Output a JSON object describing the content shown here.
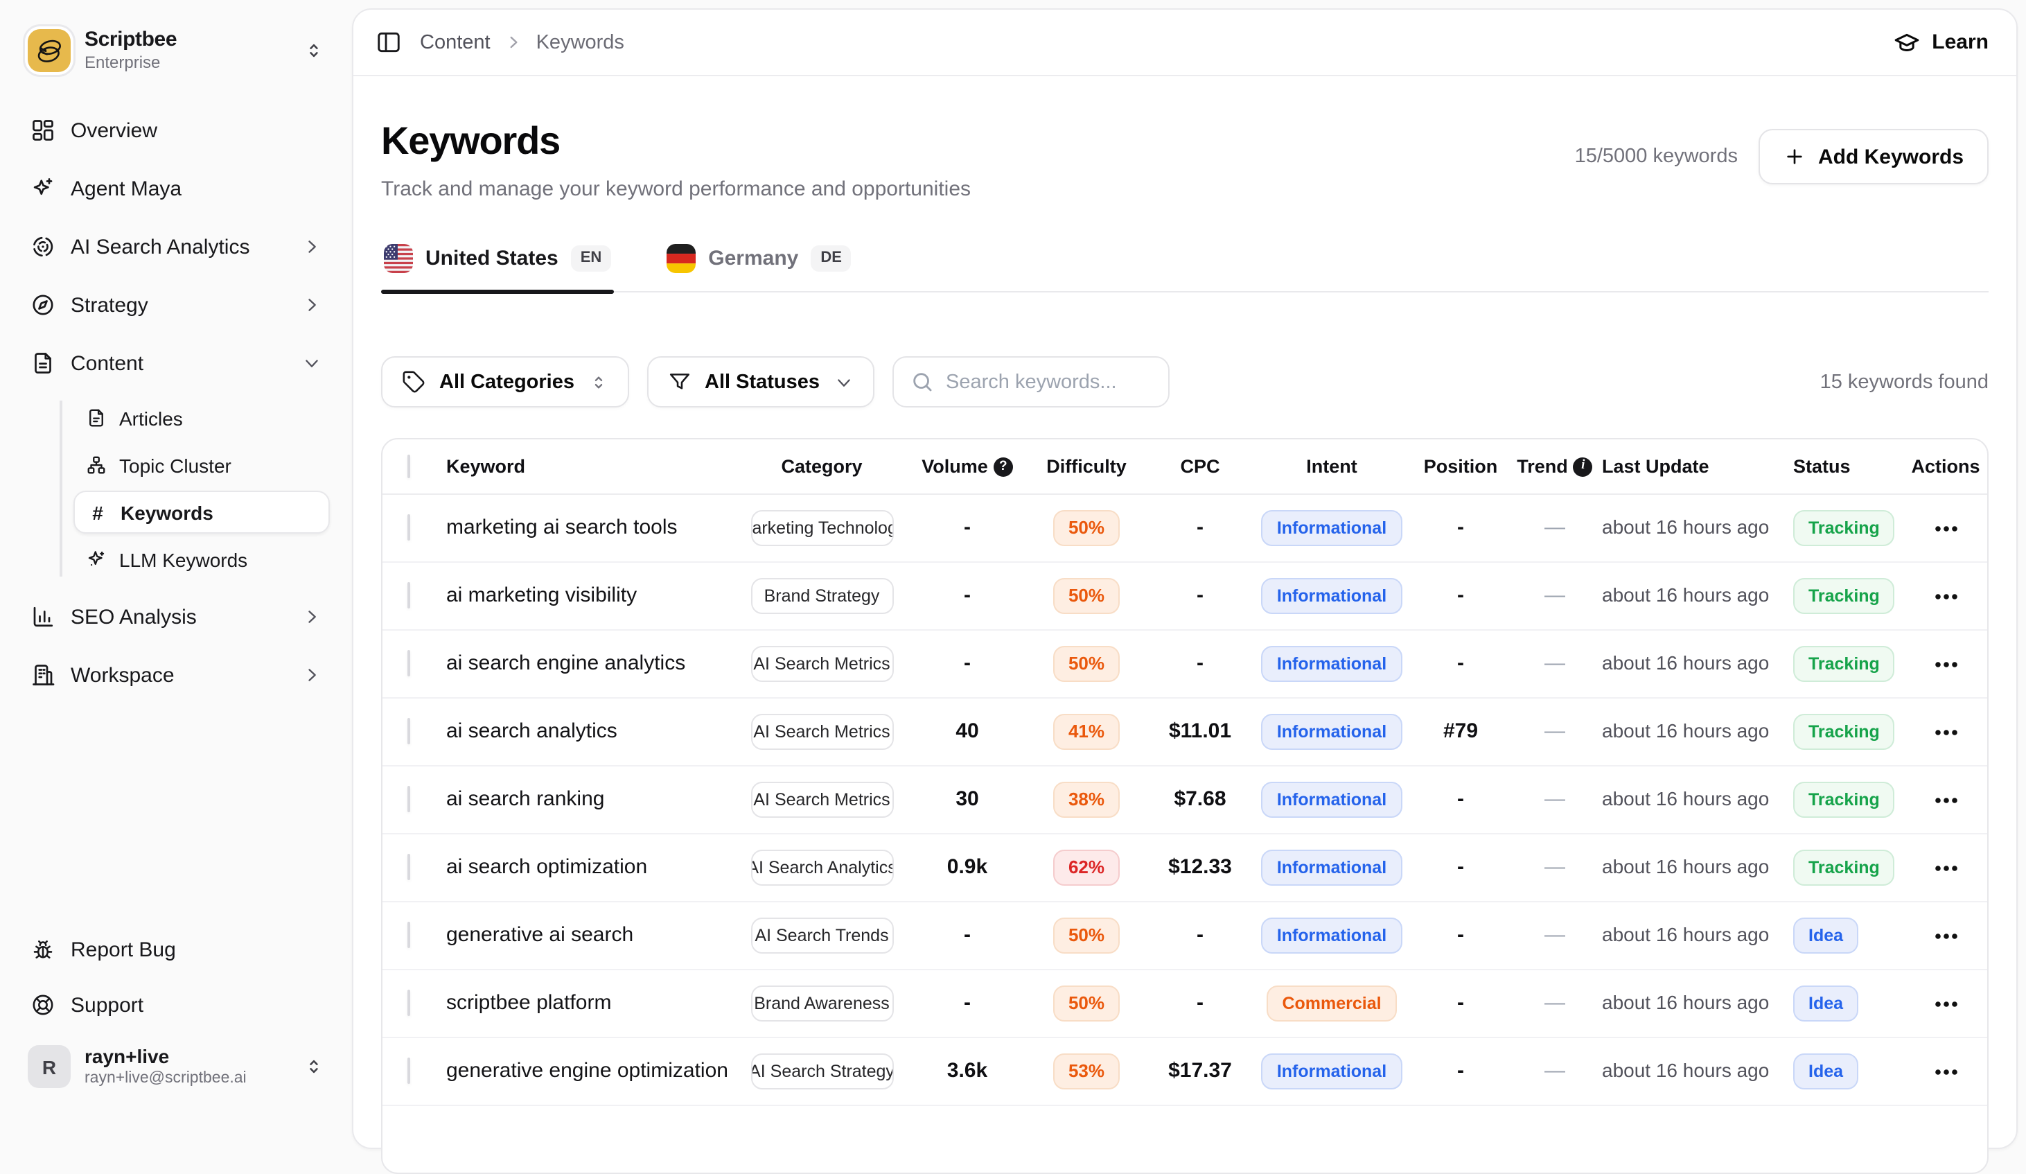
{
  "app": {
    "name": "Scriptbee",
    "plan": "Enterprise"
  },
  "sidebar": {
    "items": [
      {
        "label": "Overview",
        "icon": "grid"
      },
      {
        "label": "Agent Maya",
        "icon": "sparkles"
      },
      {
        "label": "AI Search Analytics",
        "icon": "radar",
        "chevron": "right"
      },
      {
        "label": "Strategy",
        "icon": "compass",
        "chevron": "right"
      },
      {
        "label": "Content",
        "icon": "file-text",
        "chevron": "down"
      }
    ],
    "content_children": [
      {
        "label": "Articles",
        "icon": "file"
      },
      {
        "label": "Topic Cluster",
        "icon": "cluster"
      },
      {
        "label": "Keywords",
        "icon": "hash",
        "active": true
      },
      {
        "label": "LLM Keywords",
        "icon": "sparkle"
      }
    ],
    "items_lower": [
      {
        "label": "SEO Analysis",
        "icon": "bar-chart",
        "chevron": "right"
      },
      {
        "label": "Workspace",
        "icon": "building",
        "chevron": "right"
      }
    ],
    "footer": [
      {
        "label": "Report Bug",
        "icon": "bug"
      },
      {
        "label": "Support",
        "icon": "life-buoy"
      }
    ],
    "user": {
      "initial": "R",
      "name": "rayn+live",
      "email": "rayn+live@scriptbee.ai"
    }
  },
  "topbar": {
    "breadcrumb": [
      "Content",
      "Keywords"
    ],
    "learn": "Learn"
  },
  "page": {
    "title": "Keywords",
    "subtitle": "Track and manage your keyword performance and opportunities",
    "quota": "15/5000 keywords",
    "add_button": "Add Keywords"
  },
  "tabs": [
    {
      "label": "United States",
      "lang": "EN",
      "flag": "us",
      "active": true
    },
    {
      "label": "Germany",
      "lang": "DE",
      "flag": "de",
      "active": false
    }
  ],
  "filters": {
    "category": "All Categories",
    "status": "All Statuses",
    "search_placeholder": "Search keywords...",
    "results": "15 keywords found"
  },
  "colors": {
    "brand_yellow": "#e7b94c",
    "difficulty_orange": "#ea580c",
    "difficulty_red": "#dc2626",
    "intent_blue": "#2563eb",
    "status_green": "#16a34a"
  },
  "table": {
    "columns": [
      "Keyword",
      "Category",
      "Volume",
      "Difficulty",
      "CPC",
      "Intent",
      "Position",
      "Trend",
      "Last Update",
      "Status",
      "Actions"
    ],
    "rows": [
      {
        "keyword": "marketing ai search tools",
        "category": "Marketing Technology",
        "volume": "-",
        "difficulty": "50%",
        "difficulty_tone": "orange",
        "cpc": "-",
        "intent": "Informational",
        "intent_tone": "blue",
        "position": "-",
        "trend": "—",
        "last_update": "about 16 hours ago",
        "status": "Tracking",
        "status_tone": "green"
      },
      {
        "keyword": "ai marketing visibility",
        "category": "Brand Strategy",
        "volume": "-",
        "difficulty": "50%",
        "difficulty_tone": "orange",
        "cpc": "-",
        "intent": "Informational",
        "intent_tone": "blue",
        "position": "-",
        "trend": "—",
        "last_update": "about 16 hours ago",
        "status": "Tracking",
        "status_tone": "green"
      },
      {
        "keyword": "ai search engine analytics",
        "category": "AI Search Metrics",
        "volume": "-",
        "difficulty": "50%",
        "difficulty_tone": "orange",
        "cpc": "-",
        "intent": "Informational",
        "intent_tone": "blue",
        "position": "-",
        "trend": "—",
        "last_update": "about 16 hours ago",
        "status": "Tracking",
        "status_tone": "green"
      },
      {
        "keyword": "ai search analytics",
        "category": "AI Search Metrics",
        "volume": "40",
        "difficulty": "41%",
        "difficulty_tone": "orange",
        "cpc": "$11.01",
        "intent": "Informational",
        "intent_tone": "blue",
        "position": "#79",
        "trend": "—",
        "last_update": "about 16 hours ago",
        "status": "Tracking",
        "status_tone": "green"
      },
      {
        "keyword": "ai search ranking",
        "category": "AI Search Metrics",
        "volume": "30",
        "difficulty": "38%",
        "difficulty_tone": "orange",
        "cpc": "$7.68",
        "intent": "Informational",
        "intent_tone": "blue",
        "position": "-",
        "trend": "—",
        "last_update": "about 16 hours ago",
        "status": "Tracking",
        "status_tone": "green"
      },
      {
        "keyword": "ai search optimization",
        "category": "AI Search Analytics",
        "volume": "0.9k",
        "difficulty": "62%",
        "difficulty_tone": "red",
        "cpc": "$12.33",
        "intent": "Informational",
        "intent_tone": "blue",
        "position": "-",
        "trend": "—",
        "last_update": "about 16 hours ago",
        "status": "Tracking",
        "status_tone": "green"
      },
      {
        "keyword": "generative ai search",
        "category": "AI Search Trends",
        "volume": "-",
        "difficulty": "50%",
        "difficulty_tone": "orange",
        "cpc": "-",
        "intent": "Informational",
        "intent_tone": "blue",
        "position": "-",
        "trend": "—",
        "last_update": "about 16 hours ago",
        "status": "Idea",
        "status_tone": "blue"
      },
      {
        "keyword": "scriptbee platform",
        "category": "Brand Awareness",
        "volume": "-",
        "difficulty": "50%",
        "difficulty_tone": "orange",
        "cpc": "-",
        "intent": "Commercial",
        "intent_tone": "orange",
        "position": "-",
        "trend": "—",
        "last_update": "about 16 hours ago",
        "status": "Idea",
        "status_tone": "blue"
      },
      {
        "keyword": "generative engine optimization",
        "category": "AI Search Strategy",
        "volume": "3.6k",
        "difficulty": "53%",
        "difficulty_tone": "orange",
        "cpc": "$17.37",
        "intent": "Informational",
        "intent_tone": "blue",
        "position": "-",
        "trend": "—",
        "last_update": "about 16 hours ago",
        "status": "Idea",
        "status_tone": "blue"
      }
    ]
  }
}
